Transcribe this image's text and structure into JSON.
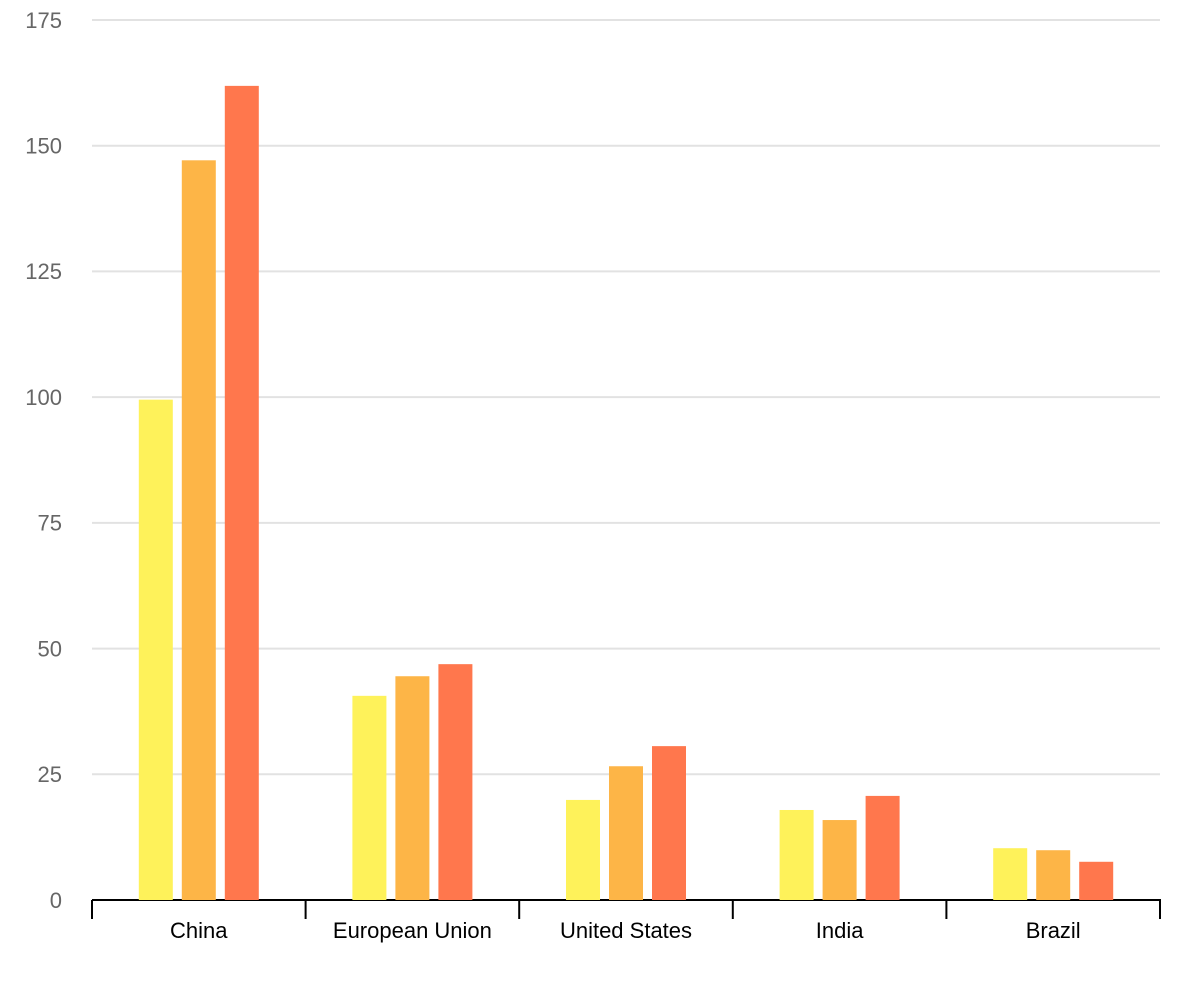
{
  "chart_data": {
    "type": "bar",
    "categories": [
      "China",
      "European Union",
      "United States",
      "India",
      "Brazil"
    ],
    "series": [
      {
        "color": "#fef25a",
        "values": [
          99.5,
          40.6,
          19.9,
          17.9,
          10.3
        ]
      },
      {
        "color": "#fdb547",
        "values": [
          147.1,
          44.5,
          26.6,
          15.9,
          9.9
        ]
      },
      {
        "color": "#ff774d",
        "values": [
          161.9,
          46.9,
          30.6,
          20.7,
          7.6
        ]
      }
    ],
    "ylim": [
      0,
      175
    ],
    "yticks": [
      0,
      25,
      50,
      75,
      100,
      125,
      150,
      175
    ],
    "grid": true
  }
}
